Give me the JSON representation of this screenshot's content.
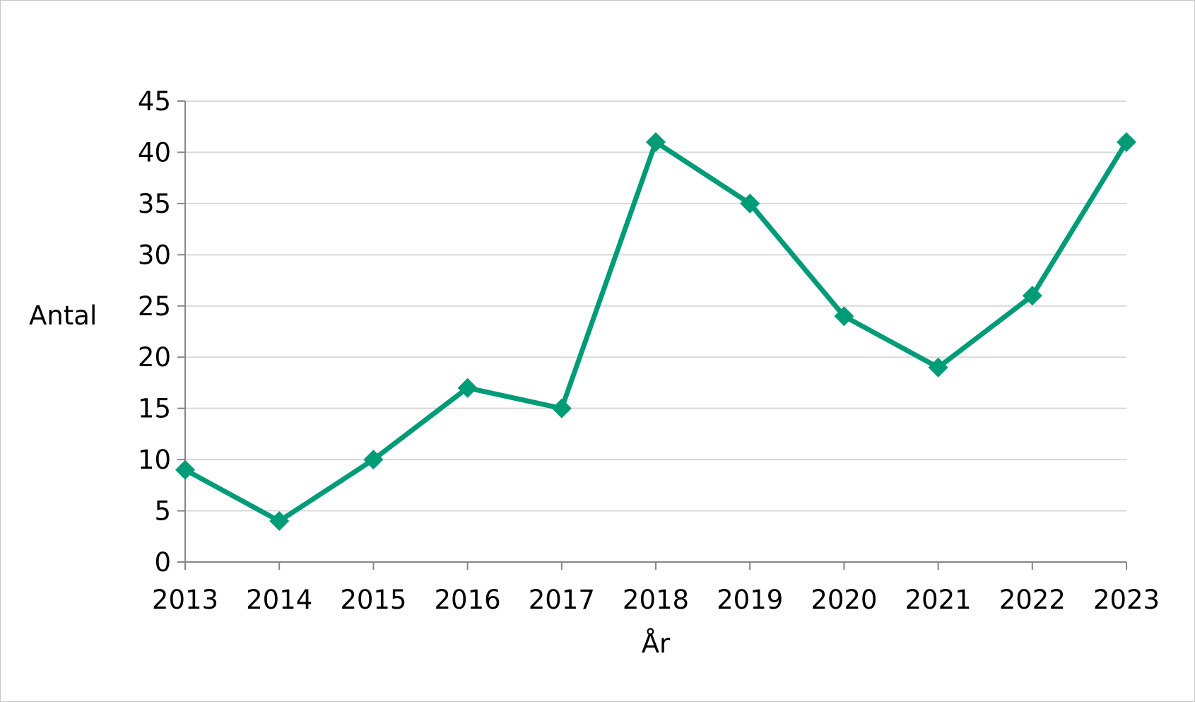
{
  "chart_data": {
    "type": "line",
    "title": "",
    "xlabel": "År",
    "ylabel": "Antal",
    "categories": [
      "2013",
      "2014",
      "2015",
      "2016",
      "2017",
      "2018",
      "2019",
      "2020",
      "2021",
      "2022",
      "2023"
    ],
    "series": [
      {
        "values": [
          9,
          4,
          10,
          17,
          15,
          41,
          35,
          24,
          19,
          26,
          41
        ],
        "color": "#009b77",
        "marker": "diamond"
      }
    ],
    "ylim": [
      0,
      45
    ],
    "yticks": [
      "0",
      "5",
      "10",
      "15",
      "20",
      "25",
      "30",
      "35",
      "40",
      "45"
    ],
    "grid": true,
    "gridColor": "#d9d9d9",
    "axisColor": "#868686",
    "legend": "none"
  }
}
